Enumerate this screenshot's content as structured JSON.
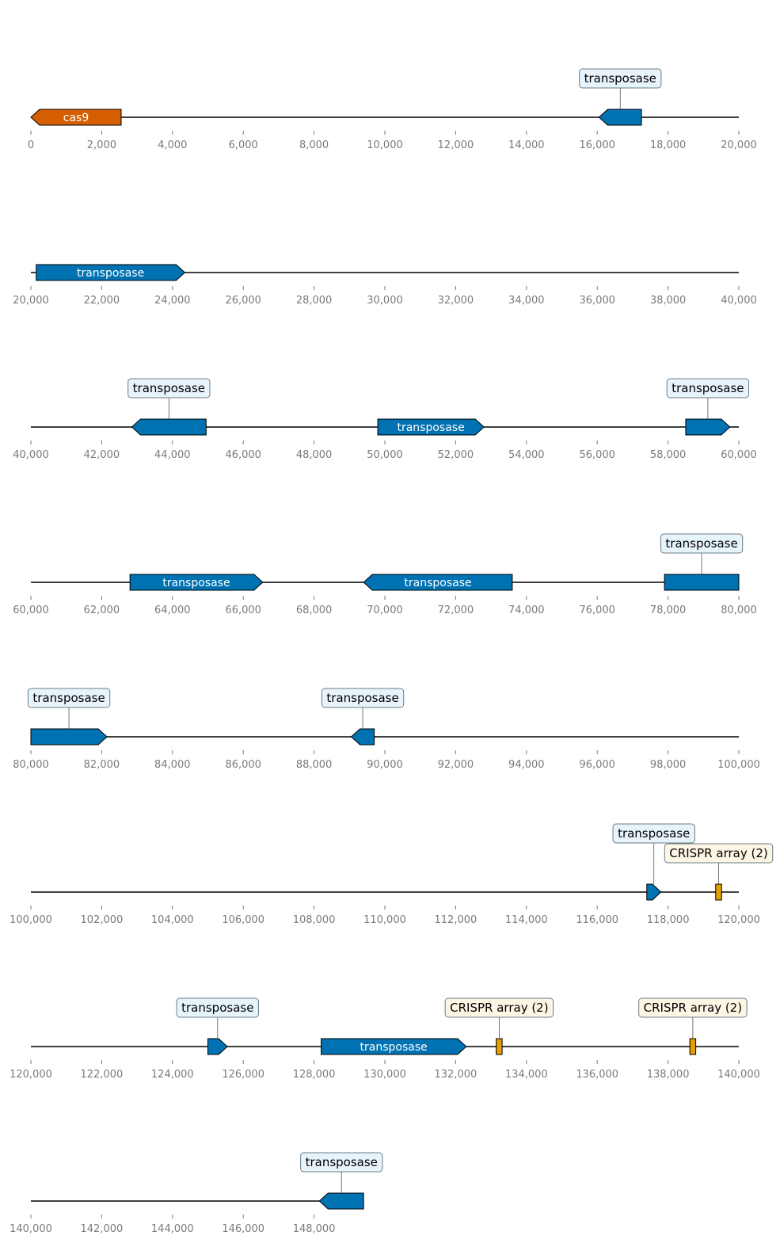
{
  "figure": {
    "type": "genome_feature_map",
    "colors": {
      "transposase": "#0072b2",
      "cas9": "#d55e00",
      "crispr": "#e69f00",
      "transposase_label_bg": "#e8f4fb",
      "crispr_label_bg": "#fdf6e5",
      "axis_text": "#7a7a7a",
      "backbone": "#000000"
    },
    "rows": [
      {
        "start": 0,
        "end": 20000
      },
      {
        "start": 20000,
        "end": 40000
      },
      {
        "start": 40000,
        "end": 60000
      },
      {
        "start": 60000,
        "end": 80000
      },
      {
        "start": 80000,
        "end": 100000
      },
      {
        "start": 100000,
        "end": 120000
      },
      {
        "start": 120000,
        "end": 140000
      },
      {
        "start": 140000,
        "end": 160000
      }
    ],
    "row_end_positions": [
      20000,
      40000,
      60000,
      80000,
      100000,
      120000,
      140000,
      149400
    ],
    "tick_step": 2000,
    "last_row_max_tick": 148000,
    "features": [
      {
        "label": "cas9",
        "type": "cas9",
        "start": 0,
        "end": 2550,
        "strand": -1,
        "label_mode": "inside"
      },
      {
        "label": "transposase",
        "type": "transposase",
        "start": 16050,
        "end": 17250,
        "strand": -1,
        "label_mode": "box"
      },
      {
        "label": "transposase",
        "type": "transposase",
        "start": 20150,
        "end": 24350,
        "strand": 1,
        "label_mode": "inside"
      },
      {
        "label": "transposase",
        "type": "transposase",
        "start": 42850,
        "end": 44950,
        "strand": -1,
        "label_mode": "box"
      },
      {
        "label": "transposase",
        "type": "transposase",
        "start": 49800,
        "end": 52800,
        "strand": 1,
        "label_mode": "inside"
      },
      {
        "label": "transposase",
        "type": "transposase",
        "start": 58500,
        "end": 59750,
        "strand": 1,
        "label_mode": "box"
      },
      {
        "label": "transposase",
        "type": "transposase",
        "start": 62800,
        "end": 66550,
        "strand": 1,
        "label_mode": "inside"
      },
      {
        "label": "transposase",
        "type": "transposase",
        "start": 69400,
        "end": 73600,
        "strand": -1,
        "label_mode": "inside"
      },
      {
        "label": "transposase",
        "type": "transposase",
        "start": 77900,
        "end": 82150,
        "strand": 1,
        "label_mode": "box_split"
      },
      {
        "label": "transposase",
        "type": "transposase",
        "start": 89050,
        "end": 89700,
        "strand": -1,
        "label_mode": "box"
      },
      {
        "label": "transposase",
        "type": "transposase",
        "start": 117400,
        "end": 117800,
        "strand": 1,
        "label_mode": "box"
      },
      {
        "label": "CRISPR array (2)",
        "type": "crispr",
        "start": 119380,
        "end": 119480,
        "strand": 0,
        "label_mode": "box"
      },
      {
        "label": "transposase",
        "type": "transposase",
        "start": 125000,
        "end": 125550,
        "strand": 1,
        "label_mode": "box"
      },
      {
        "label": "transposase",
        "type": "transposase",
        "start": 128200,
        "end": 132300,
        "strand": 1,
        "label_mode": "inside"
      },
      {
        "label": "CRISPR array (2)",
        "type": "crispr",
        "start": 133180,
        "end": 133280,
        "strand": 0,
        "label_mode": "box"
      },
      {
        "label": "CRISPR array (2)",
        "type": "crispr",
        "start": 138650,
        "end": 138750,
        "strand": 0,
        "label_mode": "box"
      },
      {
        "label": "transposase",
        "type": "transposase",
        "start": 148150,
        "end": 149400,
        "strand": -1,
        "label_mode": "box"
      }
    ]
  }
}
